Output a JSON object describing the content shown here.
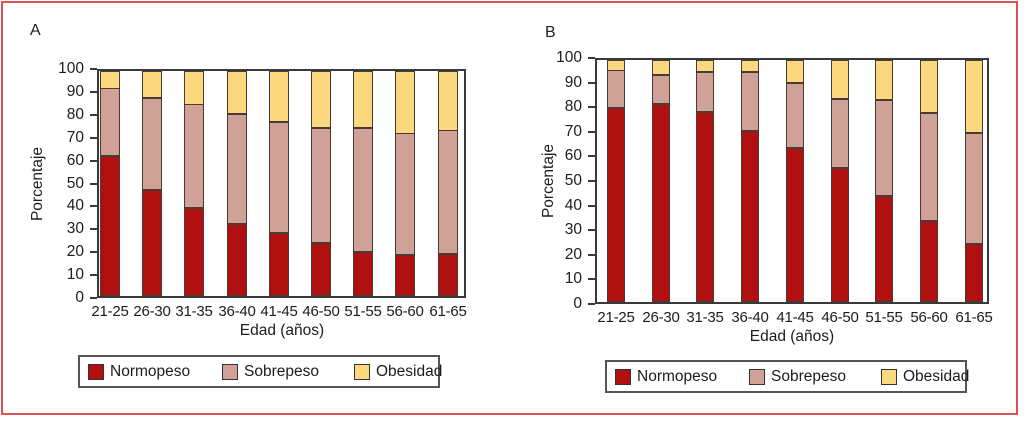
{
  "figure": {
    "border_color": "#dc5353",
    "frame_color": "#3a3a3a",
    "text_color": "#1c1c1c",
    "background_color": "#ffffff"
  },
  "chart_data": [
    {
      "panel_label": "A",
      "type": "bar",
      "stacked": true,
      "categories": [
        "21-25",
        "26-30",
        "31-35",
        "36-40",
        "41-45",
        "46-50",
        "51-55",
        "56-60",
        "61-65"
      ],
      "series": [
        {
          "name": "Normopeso",
          "color": "#b01010",
          "values": [
            62,
            47,
            39,
            32,
            28,
            23.5,
            19.5,
            18,
            18.5
          ]
        },
        {
          "name": "Sobrepeso",
          "color": "#cfa197",
          "values": [
            30,
            41,
            46,
            49,
            49.5,
            51,
            55,
            54,
            55
          ]
        },
        {
          "name": "Obesidad",
          "color": "#fbd77d",
          "values": [
            8,
            12,
            15,
            19,
            22.5,
            25.5,
            25.5,
            28,
            26.5
          ]
        }
      ],
      "xlabel": "Edad (años)",
      "ylabel": "Porcentaje",
      "ylim": [
        0,
        100
      ],
      "ytick_step": 10,
      "legend_position": "bottom",
      "grid": false
    },
    {
      "panel_label": "B",
      "type": "bar",
      "stacked": true,
      "categories": [
        "21-25",
        "26-30",
        "31-35",
        "36-40",
        "41-45",
        "46-50",
        "51-55",
        "56-60",
        "61-65"
      ],
      "series": [
        {
          "name": "Normopeso",
          "color": "#b01010",
          "values": [
            80,
            82,
            78.5,
            70.5,
            63.5,
            55.5,
            44,
            33.5,
            24
          ]
        },
        {
          "name": "Sobrepeso",
          "color": "#cfa197",
          "values": [
            15.5,
            12,
            16.5,
            24.5,
            27,
            28.5,
            39.5,
            44.5,
            46
          ]
        },
        {
          "name": "Obesidad",
          "color": "#fbd77d",
          "values": [
            4.5,
            6,
            5,
            5,
            9.5,
            16,
            16.5,
            22,
            30
          ]
        }
      ],
      "xlabel": "Edad (años)",
      "ylabel": "Porcentaje",
      "ylim": [
        0,
        100
      ],
      "ytick_step": 10,
      "legend_position": "bottom",
      "grid": false
    }
  ]
}
